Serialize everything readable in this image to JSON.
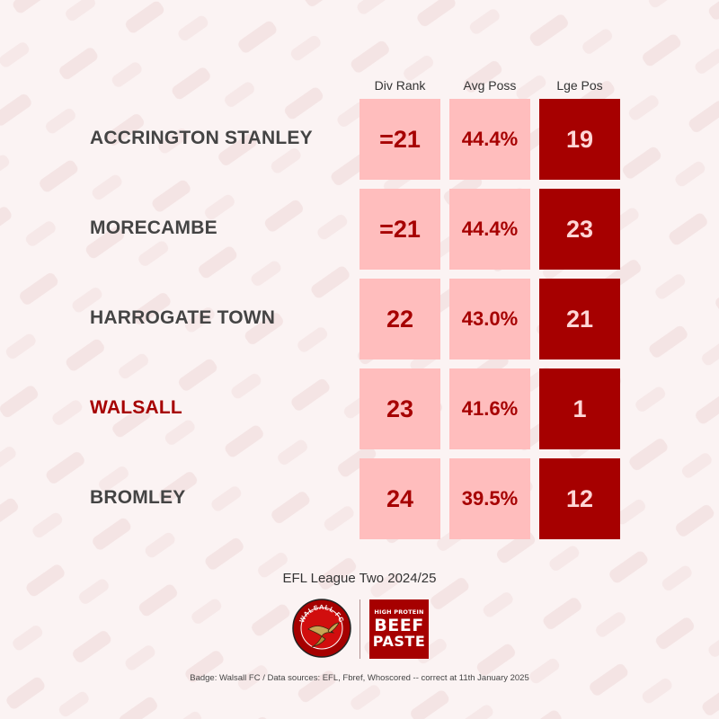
{
  "colors": {
    "background": "#fbf3f3",
    "pattern": "#f3e2e2",
    "cell_light": "#ffbdbd",
    "cell_dark": "#a60000",
    "text_red": "#a60000",
    "team_default": "#444444",
    "team_highlight": "#a60000"
  },
  "chart_data": {
    "type": "table",
    "columns": [
      "Div Rank",
      "Avg Poss",
      "Lge Pos"
    ],
    "rows": [
      {
        "team": "ACCRINGTON STANLEY",
        "div_rank": "=21",
        "avg_poss": "44.4%",
        "lge_pos": "19",
        "highlight": false
      },
      {
        "team": "MORECAMBE",
        "div_rank": "=21",
        "avg_poss": "44.4%",
        "lge_pos": "23",
        "highlight": false
      },
      {
        "team": "HARROGATE TOWN",
        "div_rank": "22",
        "avg_poss": "43.0%",
        "lge_pos": "21",
        "highlight": false
      },
      {
        "team": "WALSALL",
        "div_rank": "23",
        "avg_poss": "41.6%",
        "lge_pos": "1",
        "highlight": true
      },
      {
        "team": "BROMLEY",
        "div_rank": "24",
        "avg_poss": "39.5%",
        "lge_pos": "12",
        "highlight": false
      }
    ]
  },
  "league_label": "EFL League Two 2024/25",
  "badge": {
    "text": "WALSALL FC",
    "icon": "swift-bird-icon"
  },
  "sponsor": {
    "line1": "HIGH PROTEIN",
    "line2": "BEEF",
    "line3": "PASTE"
  },
  "footer": "Badge: Walsall FC / Data sources: EFL, Fbref, Whoscored -- correct at 11th January 2025"
}
